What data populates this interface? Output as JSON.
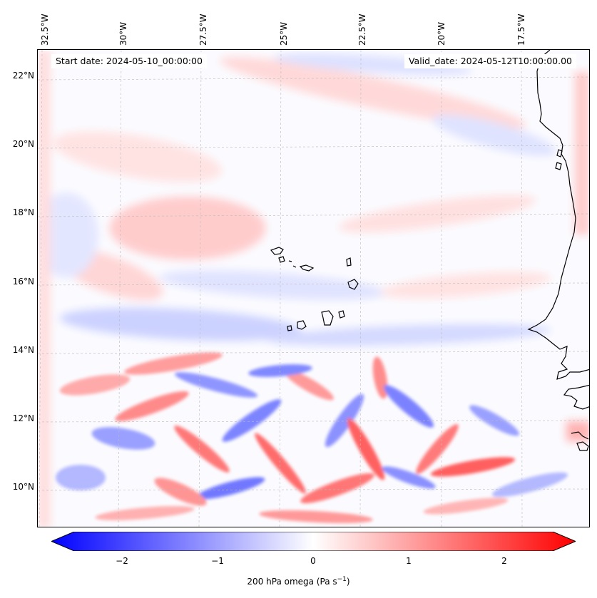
{
  "map": {
    "lon_labels": [
      "32.5°W",
      "30°W",
      "27.5°W",
      "25°W",
      "22.5°W",
      "20°W",
      "17.5°W"
    ],
    "lat_labels": [
      "22°N",
      "20°N",
      "18°N",
      "16°N",
      "14°N",
      "12°N",
      "10°N"
    ],
    "start_date": "Start date: 2024-05-10_00:00:00",
    "valid_date": "Valid_date: 2024-05-12T10:00:00.00",
    "extent": {
      "lon_min": -32.8,
      "lon_max": -16.0,
      "lat_min": 8.8,
      "lat_max": 22.8
    },
    "gridlines": true
  },
  "colorbar": {
    "title": "200 hPa omega (Pa s",
    "title_sup": "−1",
    "title_end": ")",
    "ticks": [
      "−2",
      "−1",
      "0",
      "1",
      "2"
    ],
    "tick_values": [
      -2,
      -1,
      0,
      1,
      2
    ],
    "vmin": -2.6,
    "vmax": 2.6,
    "cmap": "bwr",
    "colors": {
      "low": "#0000ff",
      "mid": "#ffffff",
      "high": "#ff0000"
    }
  }
}
